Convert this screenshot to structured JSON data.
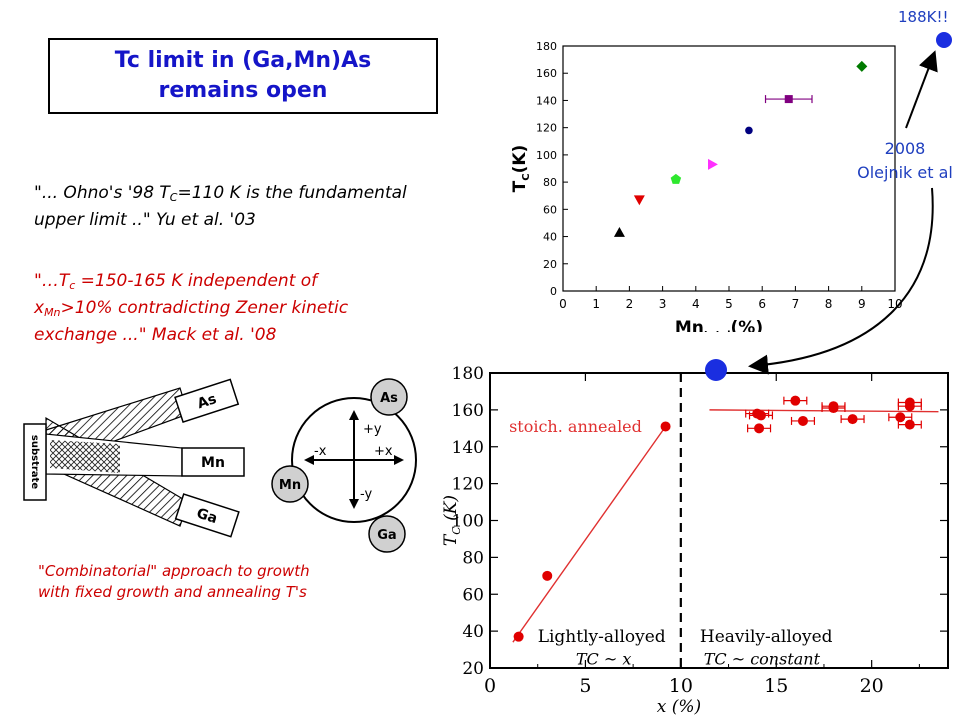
{
  "title": {
    "line1": "Tc limit in (Ga,Mn)As",
    "line2": "remains open"
  },
  "quote1": {
    "part1": "\"... Ohno's '98 T",
    "sub": "C",
    "part2": "=110 K is the fundamental",
    "line2": "upper limit  ..\" Yu et al. '03"
  },
  "quote2": {
    "part1": "\"…T",
    "sub1": "c",
    "part2": " =150-165 K  independent of",
    "part3": "x",
    "sub2": "Mn",
    "part4": ">10% contradicting Zener kinetic",
    "line3": "exchange ...\" Mack et al. '08"
  },
  "caption": {
    "line1": "\"Combinatorial\" approach to growth",
    "line2": "with fixed growth and annealing T's"
  },
  "annotation": {
    "record": "188K!!",
    "year": "2008",
    "author": "Olejnik et al",
    "marker_color": "#1a2ee0"
  },
  "growth_diagram": {
    "substrate": "substrate",
    "sources": [
      "As",
      "Mn",
      "Ga"
    ],
    "atoms": [
      "As",
      "Mn",
      "Ga"
    ],
    "axes": [
      "+y",
      "-y",
      "-x",
      "+x"
    ]
  },
  "chart_data": [
    {
      "type": "scatter",
      "title": "",
      "xlabel": "Mn_total(%)",
      "ylabel": "T_C(K)",
      "xlim": [
        0,
        10
      ],
      "ylim": [
        0,
        180
      ],
      "xticks": [
        0,
        1,
        2,
        3,
        4,
        5,
        6,
        7,
        8,
        9,
        10
      ],
      "yticks": [
        0,
        20,
        40,
        60,
        80,
        100,
        120,
        140,
        160,
        180
      ],
      "grid": false,
      "points": [
        {
          "x": 1.7,
          "y": 43,
          "marker": "triangle-up",
          "color": "#000000"
        },
        {
          "x": 2.3,
          "y": 67,
          "marker": "triangle-down",
          "color": "#e00000"
        },
        {
          "x": 3.4,
          "y": 82,
          "marker": "pentagon",
          "color": "#2ee82e"
        },
        {
          "x": 4.5,
          "y": 93,
          "marker": "triangle-right",
          "color": "#ff30ff"
        },
        {
          "x": 5.6,
          "y": 118,
          "marker": "circle",
          "color": "#000080"
        },
        {
          "x": 6.8,
          "y": 141,
          "marker": "square",
          "color": "#800080",
          "xerr": 0.7
        },
        {
          "x": 9.0,
          "y": 165,
          "marker": "diamond",
          "color": "#007a00"
        }
      ]
    },
    {
      "type": "scatter",
      "title": "",
      "xlabel": "x (%)",
      "ylabel": "T_C (K)",
      "xlim": [
        0,
        24
      ],
      "ylim": [
        20,
        180
      ],
      "xticks": [
        0,
        5,
        10,
        15,
        20
      ],
      "yticks": [
        20,
        40,
        60,
        80,
        100,
        120,
        140,
        160,
        180
      ],
      "grid": false,
      "divider_x": 10,
      "series": [
        {
          "name": "stoich. annealed",
          "x": [
            1.5,
            3,
            9.2
          ],
          "y": [
            37,
            70,
            151
          ]
        },
        {
          "name": "",
          "x": [
            14,
            14.2,
            14.1,
            16,
            16.4,
            18,
            18,
            19,
            21.5,
            22,
            22,
            22
          ],
          "y": [
            158,
            157,
            150,
            165,
            154,
            162,
            161,
            155,
            156,
            164,
            162,
            152
          ]
        }
      ],
      "fit_lines": [
        {
          "x": [
            1.2,
            9.2
          ],
          "y": [
            34,
            151
          ]
        },
        {
          "x": [
            11.5,
            23.5
          ],
          "y": [
            160,
            159
          ]
        }
      ],
      "annotations": [
        "stoich. annealed",
        "Lightly-alloyed",
        "T_C ~ x",
        "Heavily-alloyed",
        "T_C ~ constant"
      ]
    }
  ]
}
